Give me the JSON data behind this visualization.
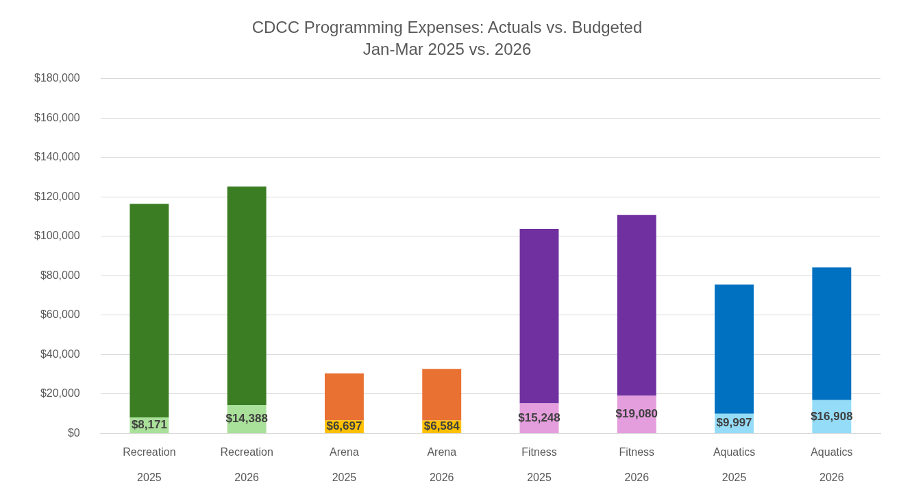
{
  "chart_data": {
    "type": "bar",
    "title": [
      "CDCC Programming Expenses: Actuals vs. Budgeted",
      "Jan-Mar 2025 vs. 2026"
    ],
    "categories": [
      "Recreation\n2025",
      "Recreation\n2026",
      "Arena\n2025",
      "Arena\n2026",
      "Fitness\n2025",
      "Fitness\n2026",
      "Aquatics\n2025",
      "Aquatics\n2026"
    ],
    "stacked": true,
    "series": [
      {
        "colors": [
          "#a9e09a",
          "#a9e09a",
          "#ffc000",
          "#ffc000",
          "#e59edd",
          "#e59edd",
          "#94dcf8",
          "#94dcf8"
        ],
        "values": [
          8171,
          14388,
          6697,
          6584,
          15248,
          19080,
          9997,
          16908
        ],
        "value_labels": [
          "$8,171",
          "$14,388",
          "$6,697",
          "$6,584",
          "$15,248",
          "$19,080",
          "$9,997",
          "$16,908"
        ]
      },
      {
        "colors": [
          "#3b7d23",
          "#3b7d23",
          "#e97132",
          "#e97132",
          "#7030a0",
          "#7030a0",
          "#0070c0",
          "#0070c0"
        ],
        "values": [
          108300,
          110900,
          23800,
          26200,
          88500,
          91700,
          65500,
          67300
        ]
      }
    ],
    "ylim": [
      0,
      180000
    ],
    "yticks": [
      {
        "value": 0,
        "label": "$0"
      },
      {
        "value": 20000,
        "label": "$20,000"
      },
      {
        "value": 40000,
        "label": "$40,000"
      },
      {
        "value": 60000,
        "label": "$60,000"
      },
      {
        "value": 80000,
        "label": "$80,000"
      },
      {
        "value": 100000,
        "label": "$100,000"
      },
      {
        "value": 120000,
        "label": "$120,000"
      },
      {
        "value": 140000,
        "label": "$140,000"
      },
      {
        "value": 160000,
        "label": "$160,000"
      },
      {
        "value": 180000,
        "label": "$180,000"
      }
    ],
    "grid": "y",
    "legend": false
  }
}
